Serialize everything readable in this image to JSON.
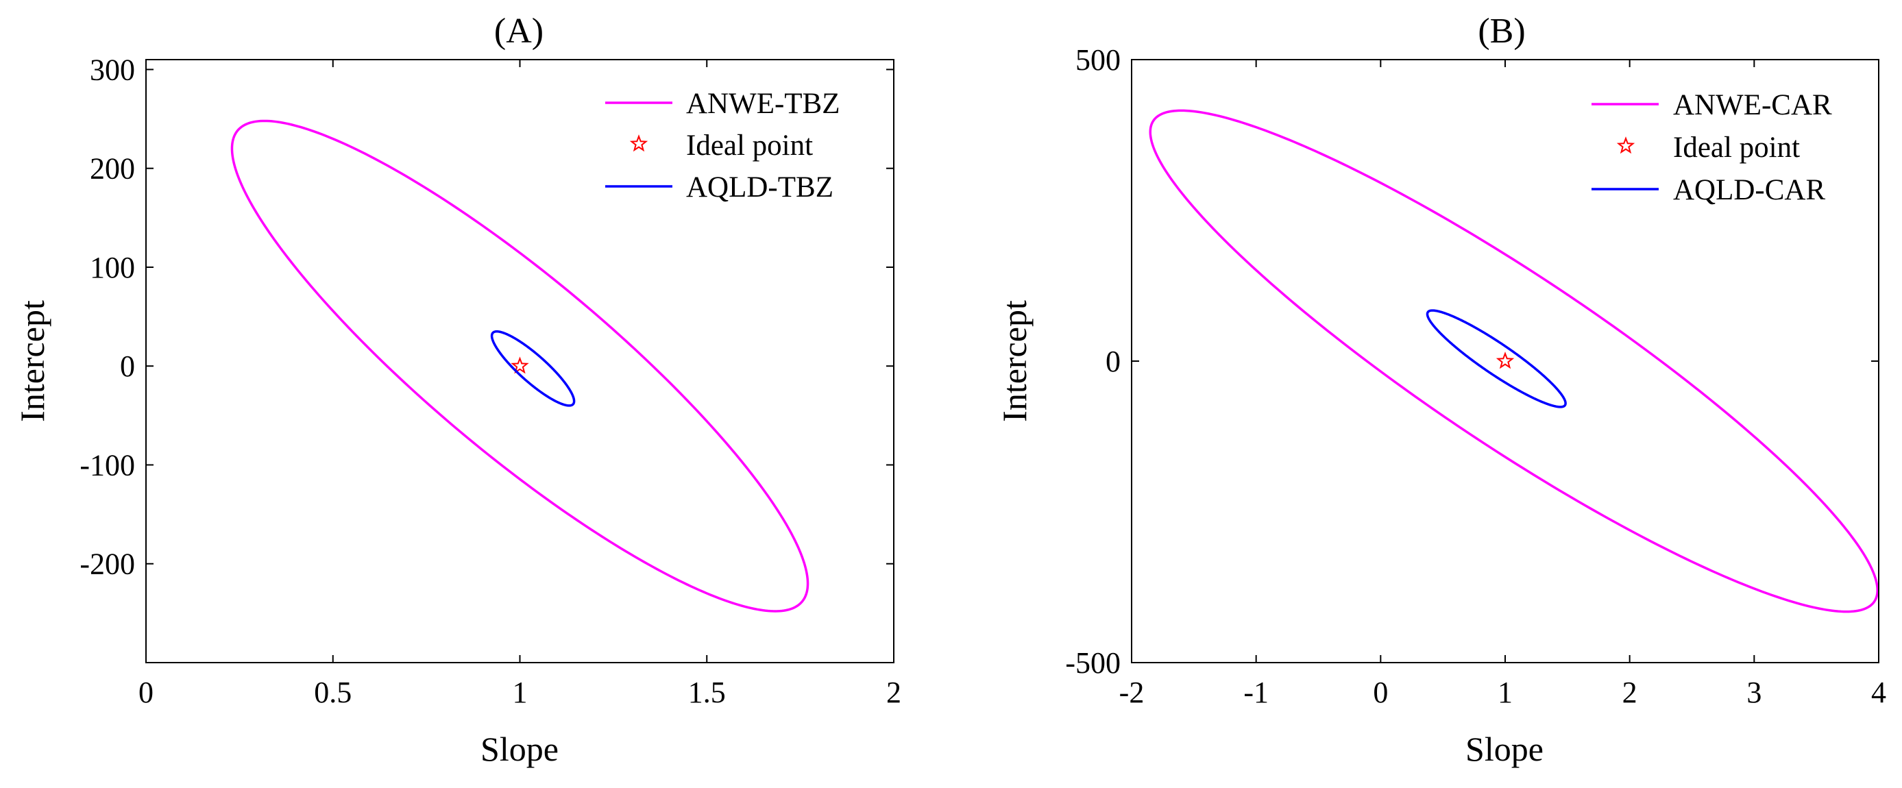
{
  "chart_data": [
    {
      "type": "line",
      "panel_title": "(A)",
      "xlabel": "Slope",
      "ylabel": "Intercept",
      "xlim": [
        0,
        2
      ],
      "ylim": [
        -300,
        310
      ],
      "xticks": [
        0,
        0.5,
        1,
        1.5,
        2
      ],
      "xtick_labels": [
        "0",
        "0.5",
        "1",
        "1.5",
        "2"
      ],
      "yticks": [
        -200,
        -100,
        0,
        100,
        200,
        300
      ],
      "ytick_labels": [
        "-200",
        "-100",
        "0",
        "100",
        "200",
        "300"
      ],
      "grid": false,
      "legend_position": "top-right",
      "series": [
        {
          "name": "ANWE-TBZ",
          "kind": "ellipse",
          "color": "#ff00ff",
          "center": [
            1,
            0
          ],
          "extremes": {
            "x_min": [
              0.2,
              220
            ],
            "x_max": [
              1.74,
              -220
            ],
            "y_max": [
              0.28,
              245
            ],
            "y_min": [
              1.67,
              -251
            ]
          }
        },
        {
          "name": "Ideal point",
          "kind": "marker",
          "marker": "pentagram",
          "color": "#ff0000",
          "point": [
            1,
            0
          ]
        },
        {
          "name": "AQLD-TBZ",
          "kind": "ellipse",
          "color": "#0000ff",
          "center": [
            1.035,
            -2.5
          ],
          "extremes": {
            "x_min": [
              0.92,
              30
            ],
            "x_max": [
              1.14,
              -36
            ],
            "y_max": [
              0.93,
              35
            ],
            "y_min": [
              1.13,
              -40
            ]
          }
        }
      ]
    },
    {
      "type": "line",
      "panel_title": "(B)",
      "xlabel": "Slope",
      "ylabel": "Intercept",
      "xlim": [
        -2,
        4
      ],
      "ylim": [
        -500,
        500
      ],
      "xticks": [
        -2,
        -1,
        0,
        1,
        2,
        3,
        4
      ],
      "xtick_labels": [
        "-2",
        "-1",
        "0",
        "1",
        "2",
        "3",
        "4"
      ],
      "yticks": [
        -500,
        0,
        500
      ],
      "ytick_labels": [
        "-500",
        "0",
        "500"
      ],
      "grid": false,
      "legend_position": "top-right",
      "series": [
        {
          "name": "ANWE-CAR",
          "kind": "ellipse",
          "color": "#ff00ff",
          "center": [
            1.07,
            0
          ],
          "extremes": {
            "x_min": [
              -2.0,
              380
            ],
            "x_max": [
              3.84,
              -380
            ],
            "y_max": [
              -1.7,
              415
            ],
            "y_min": [
              3.57,
              -416
            ]
          }
        },
        {
          "name": "Ideal point",
          "kind": "marker",
          "marker": "pentagram",
          "color": "#ff0000",
          "point": [
            1,
            0
          ]
        },
        {
          "name": "AQLD-CAR",
          "kind": "ellipse",
          "color": "#0000ff",
          "center": [
            0.93,
            4
          ],
          "extremes": {
            "x_min": [
              0.36,
              78
            ],
            "x_max": [
              1.47,
              -70
            ],
            "y_max": [
              0.4,
              85
            ],
            "y_min": [
              1.43,
              -75
            ]
          }
        }
      ]
    }
  ]
}
